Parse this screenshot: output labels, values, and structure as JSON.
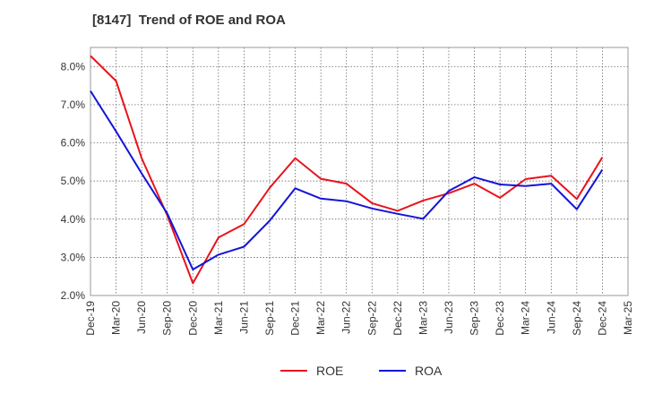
{
  "chart_data": {
    "type": "line",
    "title": "[8147]  Trend of ROE and ROA",
    "xlabel": "",
    "ylabel": "",
    "categories": [
      "Dec-19",
      "Mar-20",
      "Jun-20",
      "Sep-20",
      "Dec-20",
      "Mar-21",
      "Jun-21",
      "Sep-21",
      "Dec-21",
      "Mar-22",
      "Jun-22",
      "Sep-22",
      "Dec-22",
      "Mar-23",
      "Jun-23",
      "Sep-23",
      "Dec-23",
      "Mar-24",
      "Jun-24",
      "Sep-24",
      "Dec-24",
      "Mar-25"
    ],
    "ylim": [
      2.0,
      8.5
    ],
    "yticks": [
      "2.0%",
      "3.0%",
      "4.0%",
      "5.0%",
      "6.0%",
      "7.0%",
      "8.0%"
    ],
    "grid": true,
    "legend_position": "bottom",
    "series": [
      {
        "name": "ROE",
        "color": "#e8141c",
        "values": [
          8.28,
          7.62,
          5.6,
          4.1,
          2.32,
          3.52,
          3.87,
          4.82,
          5.6,
          5.06,
          4.93,
          4.42,
          4.22,
          4.49,
          4.68,
          4.93,
          4.56,
          5.05,
          5.14,
          4.53,
          5.62,
          null
        ]
      },
      {
        "name": "ROA",
        "color": "#1414d8",
        "values": [
          7.36,
          6.3,
          5.2,
          4.15,
          2.68,
          3.07,
          3.28,
          3.96,
          4.81,
          4.54,
          4.47,
          4.28,
          4.14,
          4.01,
          4.74,
          5.1,
          4.91,
          4.87,
          4.93,
          4.26,
          5.3,
          null
        ]
      }
    ]
  }
}
